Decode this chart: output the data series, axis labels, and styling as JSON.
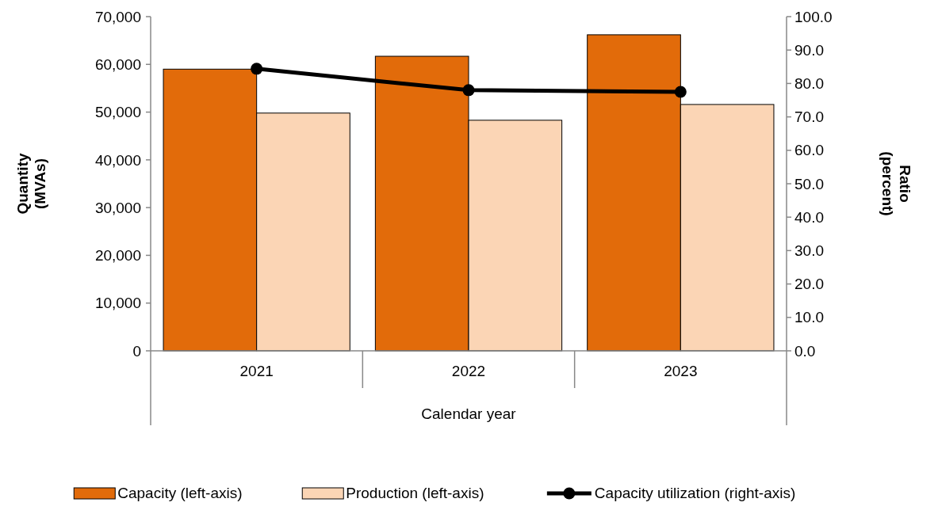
{
  "chart_data": {
    "type": "bar",
    "categories": [
      "2021",
      "2022",
      "2023"
    ],
    "xlabel": "Calendar year",
    "ylabel": "Quantity\n(MVAs)",
    "y2label": "Ratio\n(percent)",
    "series": [
      {
        "name": "Capacity (left-axis)",
        "color": "#e26b0a",
        "values": [
          59000,
          61700,
          66200
        ]
      },
      {
        "name": "Production (left-axis)",
        "color": "#fbd5b5",
        "values": [
          49800,
          48300,
          51600
        ]
      },
      {
        "name": "Capacity utilization (right-axis)",
        "type": "line",
        "axis": "y2",
        "color": "#000000",
        "values": [
          84.4,
          78.0,
          77.5
        ]
      }
    ],
    "ylim": [
      0,
      70000
    ],
    "yticks": [
      {
        "value": 0,
        "label": "0"
      },
      {
        "value": 10000,
        "label": "10,000"
      },
      {
        "value": 20000,
        "label": "20,000"
      },
      {
        "value": 30000,
        "label": "30,000"
      },
      {
        "value": 40000,
        "label": "40,000"
      },
      {
        "value": 50000,
        "label": "50,000"
      },
      {
        "value": 60000,
        "label": "60,000"
      },
      {
        "value": 70000,
        "label": "70,000"
      }
    ],
    "y2lim": [
      0,
      100
    ],
    "y2ticks": [
      {
        "value": 0,
        "label": "0.0"
      },
      {
        "value": 10,
        "label": "10.0"
      },
      {
        "value": 20,
        "label": "20.0"
      },
      {
        "value": 30,
        "label": "30.0"
      },
      {
        "value": 40,
        "label": "40.0"
      },
      {
        "value": 50,
        "label": "50.0"
      },
      {
        "value": 60,
        "label": "60.0"
      },
      {
        "value": 70,
        "label": "70.0"
      },
      {
        "value": 80,
        "label": "80.0"
      },
      {
        "value": 90,
        "label": "90.0"
      },
      {
        "value": 100,
        "label": "100.0"
      }
    ],
    "grid": false,
    "legend": "bottom",
    "marker": "circle",
    "line_style": "solid"
  }
}
